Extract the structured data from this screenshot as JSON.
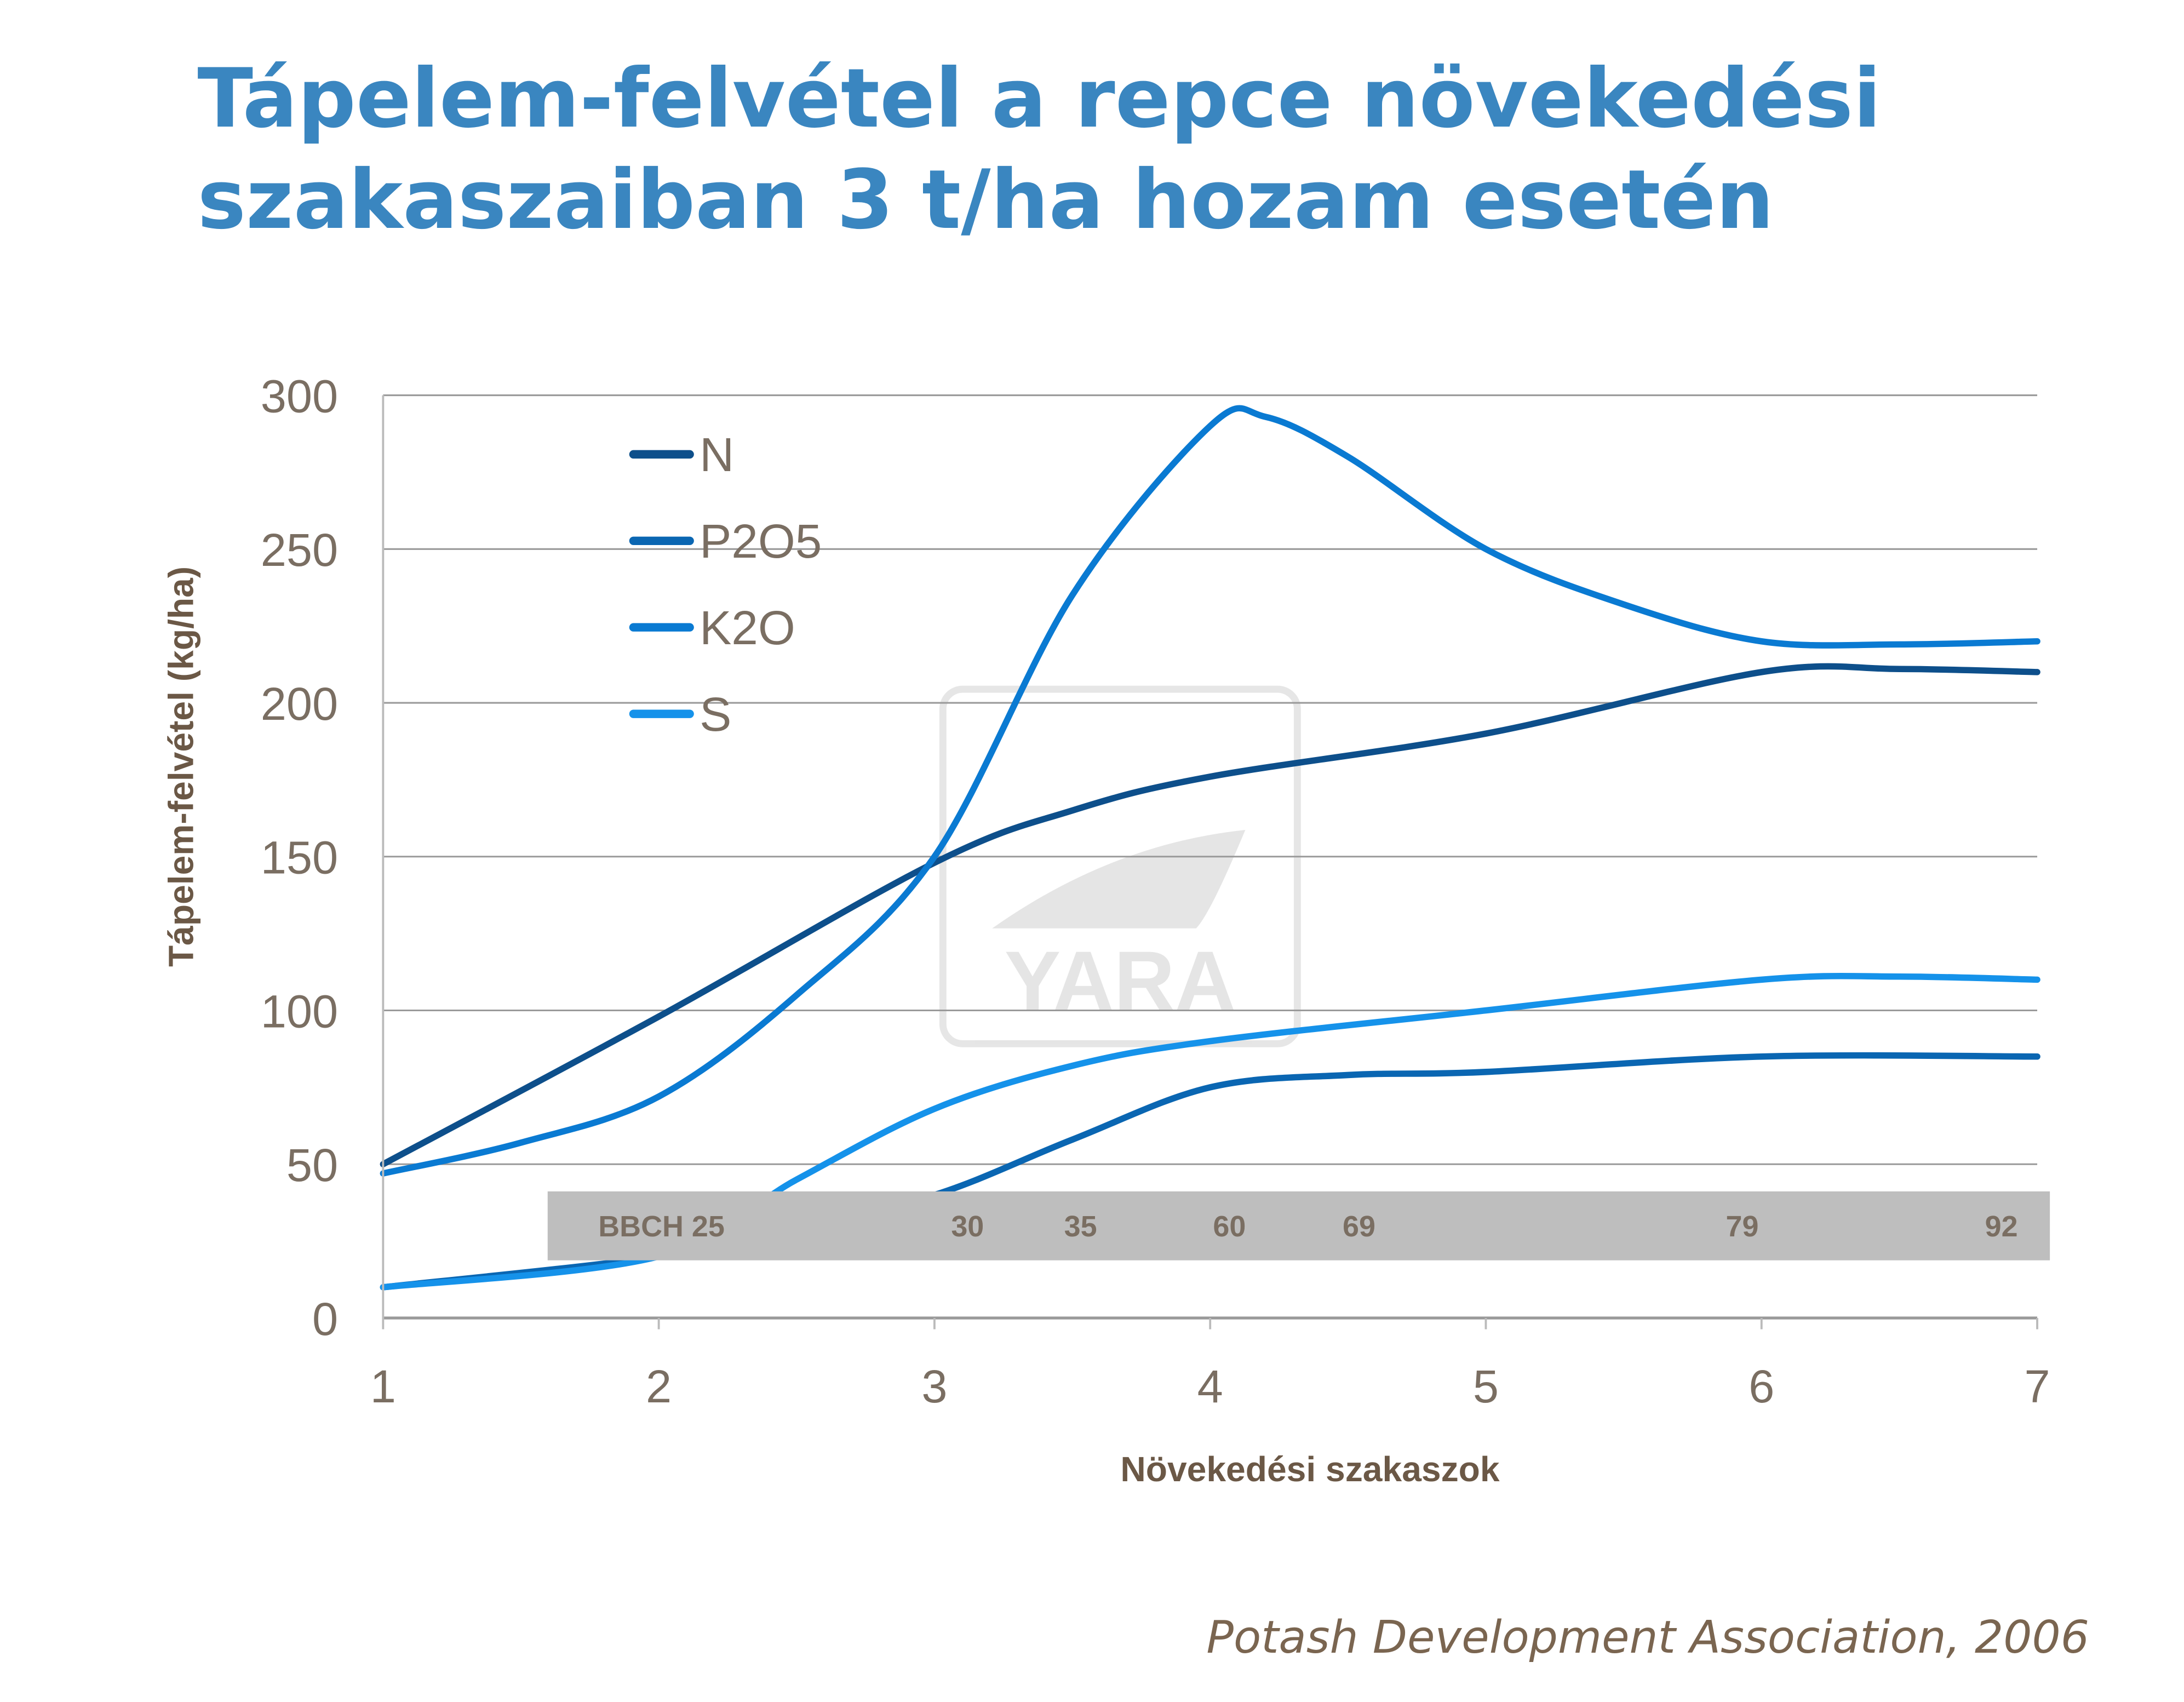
{
  "title_line1": "Tápelem-felvétel a repce növekedési",
  "title_line2": "szakaszaiban 3 t/ha hozam esetén",
  "source": "Potash Development Association, 2006",
  "watermark": "YARA",
  "chart_data": {
    "type": "line",
    "xlabel": "Növekedési szakaszok",
    "ylabel": "Tápelem-felvétel (kg/ha)",
    "xlim": [
      1,
      7
    ],
    "ylim": [
      0,
      300
    ],
    "xticks": [
      1,
      2,
      3,
      4,
      5,
      6,
      7
    ],
    "yticks": [
      0,
      50,
      100,
      150,
      200,
      250,
      300
    ],
    "grid": "horizontal",
    "legend": "top-left",
    "series": [
      {
        "name": "N",
        "color": "#0d4f8b",
        "x": [
          1,
          2,
          3,
          3.5,
          4,
          5,
          6,
          6.5,
          7
        ],
        "y": [
          50,
          98,
          148,
          165,
          176,
          190,
          210,
          211,
          210
        ]
      },
      {
        "name": "P2O5",
        "color": "#0a66b2",
        "x": [
          1,
          2,
          2.5,
          3,
          3.5,
          4,
          4.5,
          5,
          6,
          7
        ],
        "y": [
          10,
          20,
          30,
          40,
          58,
          75,
          79,
          80,
          85,
          85
        ]
      },
      {
        "name": "K2O",
        "color": "#0a7ad2",
        "x": [
          1,
          1.5,
          2,
          2.5,
          3,
          3.5,
          4,
          4.2,
          4.5,
          5,
          5.5,
          6,
          6.5,
          7
        ],
        "y": [
          47,
          57,
          72,
          105,
          150,
          235,
          290,
          293,
          280,
          250,
          232,
          220,
          219,
          220
        ]
      },
      {
        "name": "S",
        "color": "#1592ea",
        "x": [
          1,
          2,
          2.5,
          3,
          3.5,
          4,
          5,
          6,
          6.5,
          7
        ],
        "y": [
          10,
          20,
          45,
          68,
          82,
          90,
          100,
          110,
          111,
          110
        ]
      }
    ],
    "bbch": {
      "prefix": "BBCH",
      "labels": [
        {
          "label": "25",
          "x": 1.9
        },
        {
          "label": "30",
          "x": 3.12
        },
        {
          "label": "35",
          "x": 3.53
        },
        {
          "label": "60",
          "x": 4.07
        },
        {
          "label": "69",
          "x": 4.54
        },
        {
          "label": "79",
          "x": 5.93
        },
        {
          "label": "92",
          "x": 6.87
        }
      ]
    }
  }
}
